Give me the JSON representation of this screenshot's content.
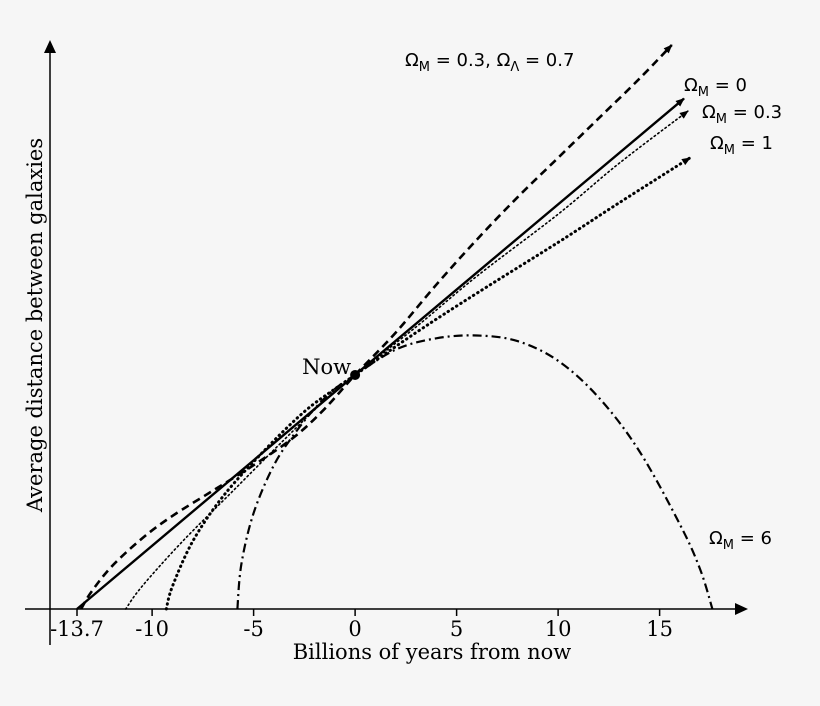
{
  "chart_data": {
    "type": "line",
    "xlabel": "Billions of years from now",
    "ylabel": "Average distance between galaxies",
    "xlim": [
      -14.8,
      18.9
    ],
    "ylim": [
      0,
      1
    ],
    "x_ticks": [
      "-13.7",
      "-10",
      "-5",
      "0",
      "5",
      "10",
      "15"
    ],
    "x_tick_values": [
      -13.7,
      -10,
      -5,
      0,
      5,
      10,
      15
    ],
    "now_label": "Now",
    "now_point": {
      "x": 0,
      "y": 0.415
    },
    "series": [
      {
        "name": "ΩM = 0.3, ΩΛ = 0.7",
        "name_text": "Ω",
        "name_sub": "M",
        "name_rest": " = 0.3, Ω",
        "name_sub2": "Λ",
        "name_tail": " = 0.7",
        "style": "dashed",
        "x": [
          -13.5,
          -13.0,
          -12.0,
          -10.5,
          -9.0,
          -7.0,
          -5.0,
          -3.0,
          -1.5,
          0,
          2.0,
          4.0,
          6.0,
          8.0,
          10.0,
          12.0,
          14.0,
          15.6
        ],
        "y": [
          0.0,
          0.03,
          0.075,
          0.125,
          0.165,
          0.21,
          0.255,
          0.305,
          0.355,
          0.415,
          0.49,
          0.575,
          0.655,
          0.73,
          0.8,
          0.87,
          0.94,
          1.0
        ]
      },
      {
        "name": "ΩM = 0",
        "name_text": "Ω",
        "name_sub": "M",
        "name_rest": " = 0",
        "style": "solid",
        "x": [
          -13.7,
          0,
          16.2
        ],
        "y": [
          0.0,
          0.415,
          0.905
        ]
      },
      {
        "name": "ΩM = 0.3",
        "name_text": "Ω",
        "name_sub": "M",
        "name_rest": " = 0.3",
        "style": "dotted-fine",
        "x": [
          -11.3,
          -10.5,
          -8.5,
          -6.0,
          -3.5,
          -1.5,
          0,
          3.0,
          6.0,
          10.0,
          13.0,
          16.4
        ],
        "y": [
          0.0,
          0.04,
          0.12,
          0.21,
          0.3,
          0.37,
          0.415,
          0.5,
          0.59,
          0.7,
          0.79,
          0.883
        ]
      },
      {
        "name": "ΩM = 1",
        "name_text": "Ω",
        "name_sub": "M",
        "name_rest": " = 1",
        "style": "dotted",
        "x": [
          -9.3,
          -9.0,
          -8.0,
          -6.5,
          -4.5,
          -2.5,
          -1.0,
          0,
          3.0,
          6.0,
          10.0,
          13.0,
          16.5
        ],
        "y": [
          0.0,
          0.04,
          0.12,
          0.2,
          0.28,
          0.35,
          0.39,
          0.415,
          0.49,
          0.56,
          0.65,
          0.72,
          0.8
        ]
      },
      {
        "name": "ΩM = 6",
        "name_text": "Ω",
        "name_sub": "M",
        "name_rest": " = 6",
        "style": "dashdot",
        "x": [
          -5.8,
          -5.6,
          -5.0,
          -4.0,
          -3.0,
          -2.0,
          -1.0,
          0,
          2.0,
          4.0,
          6.0,
          8.0,
          10.0,
          12.0,
          14.0,
          16.0,
          17.0,
          17.6
        ],
        "y": [
          0.0,
          0.08,
          0.17,
          0.255,
          0.31,
          0.355,
          0.39,
          0.415,
          0.46,
          0.48,
          0.485,
          0.475,
          0.44,
          0.375,
          0.28,
          0.15,
          0.07,
          0.0
        ]
      }
    ]
  }
}
